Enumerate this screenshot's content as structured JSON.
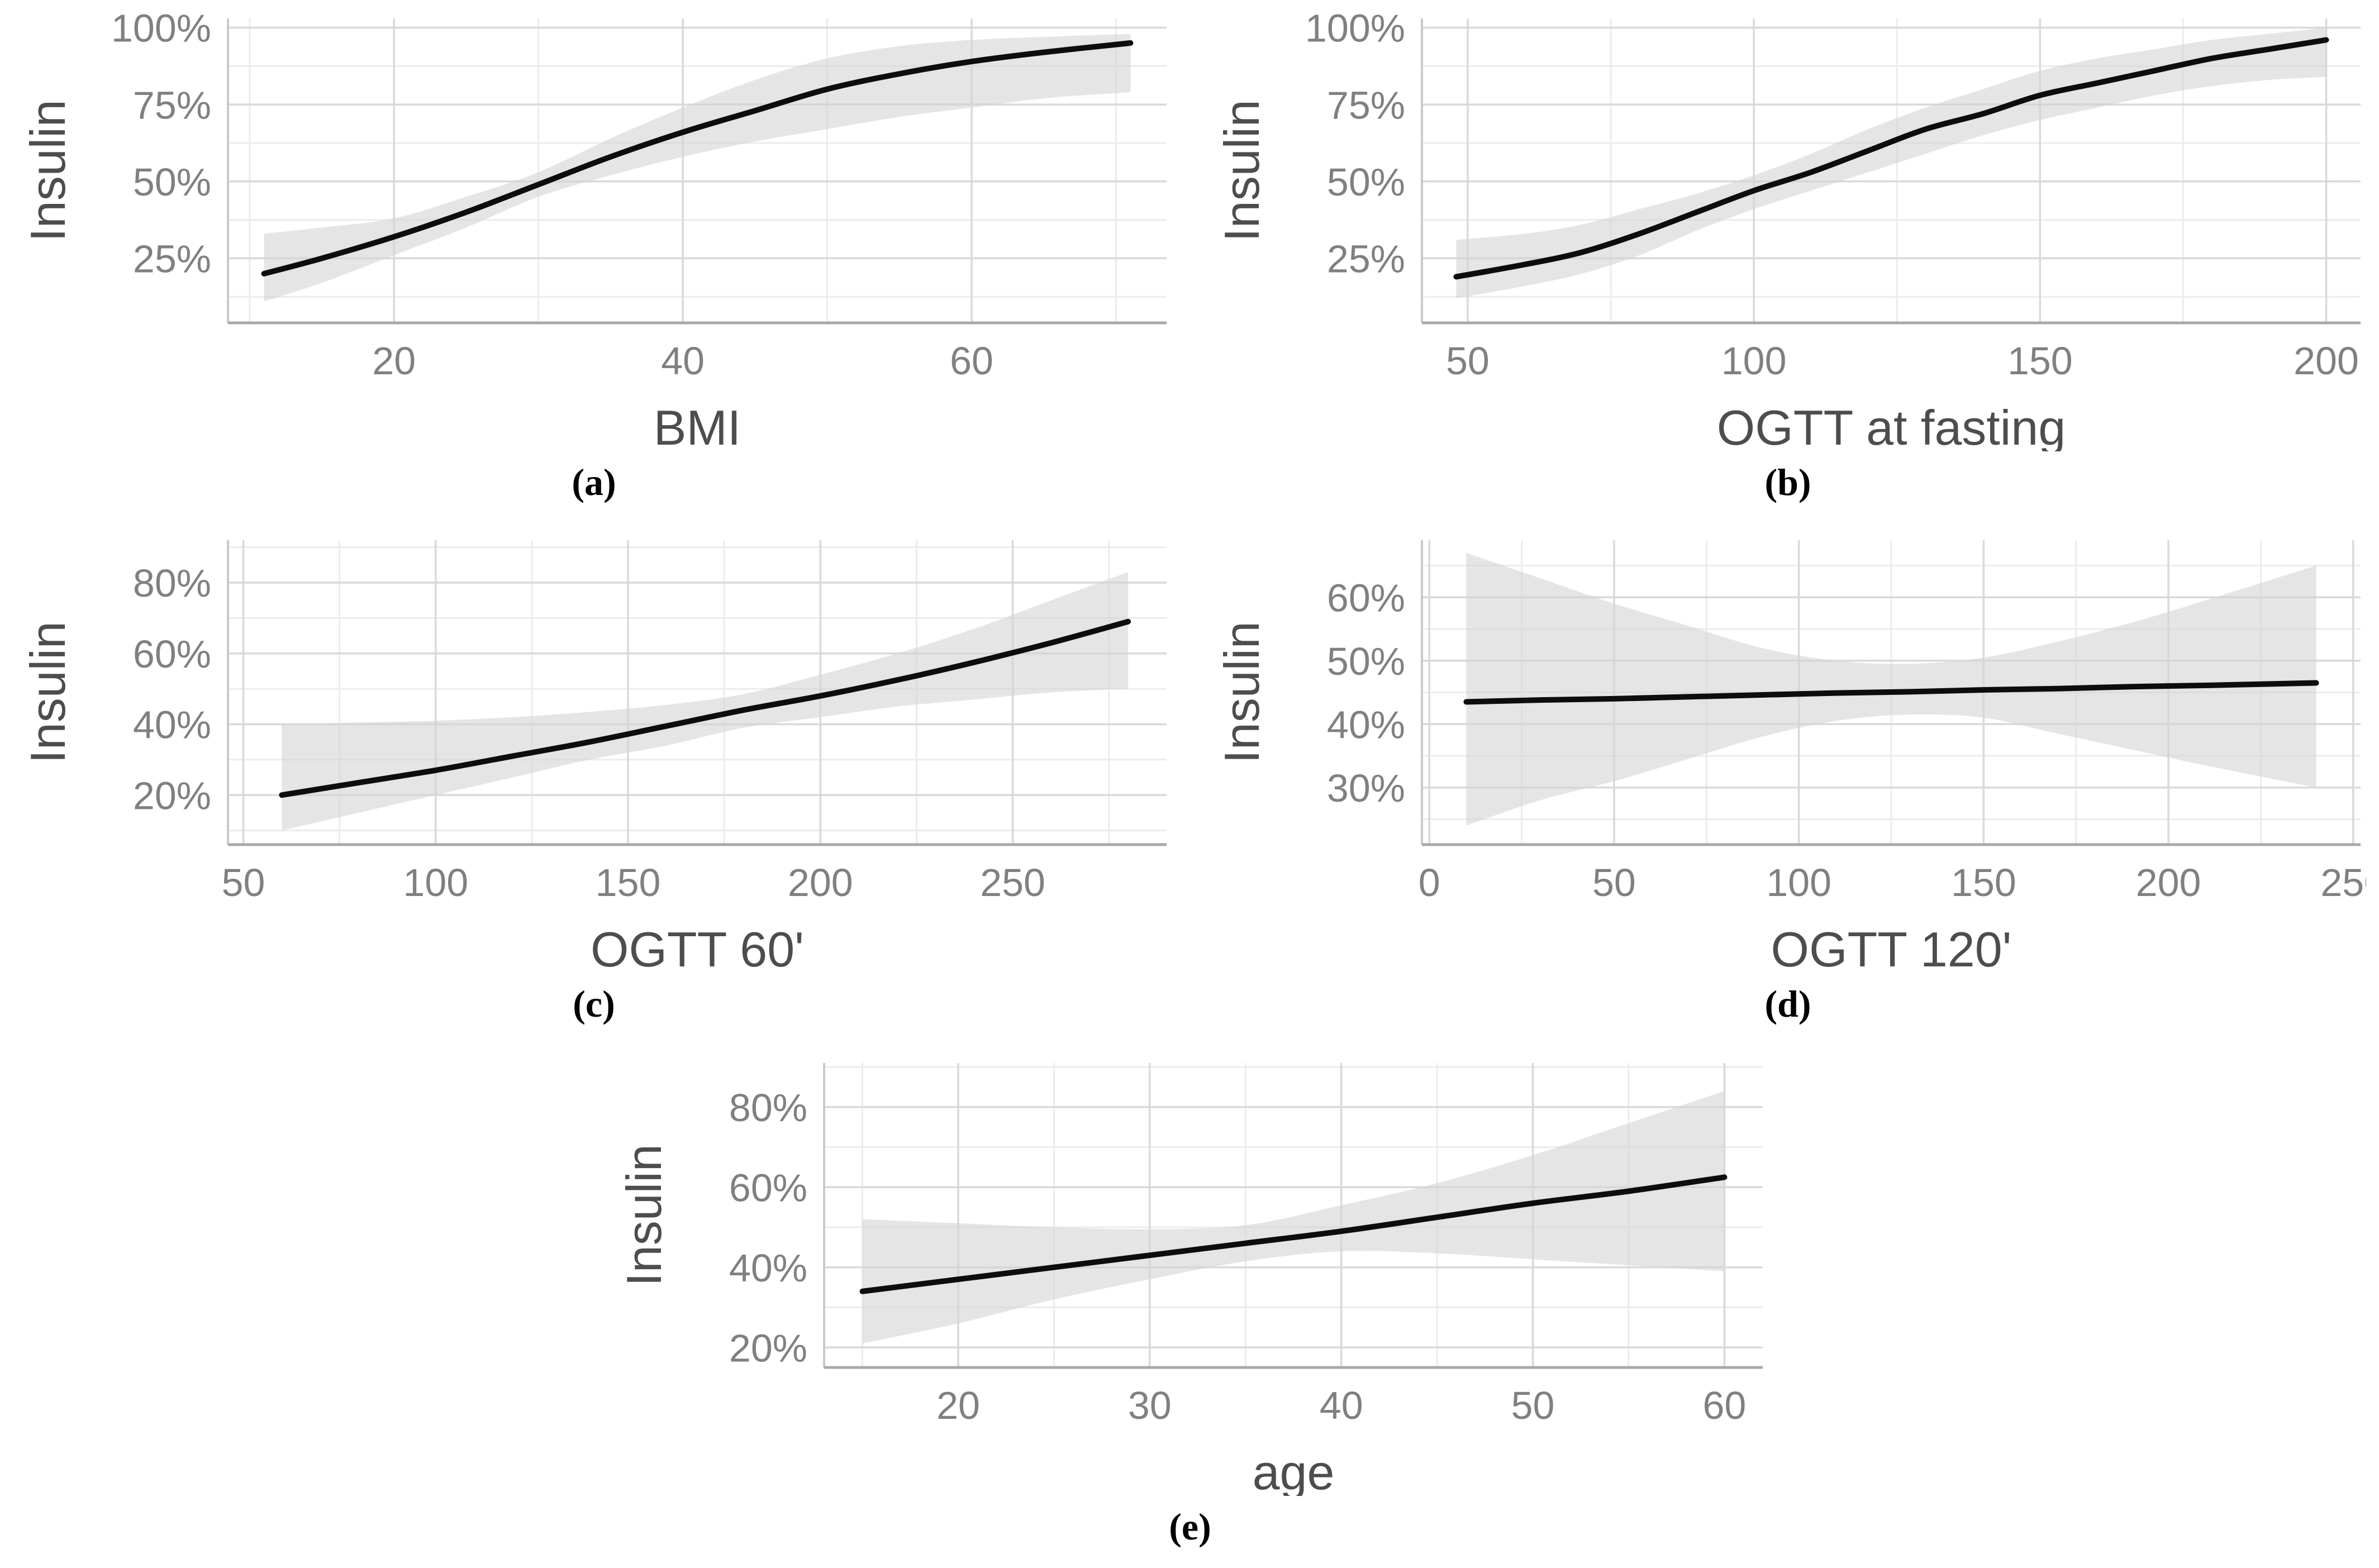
{
  "figure": {
    "background": "#ffffff",
    "tick_color": "#808080",
    "title_color": "#4d4d4d",
    "grid_major_color": "#d9d9d9",
    "grid_minor_color": "#ececec",
    "axis_left_color": "#c9c9c9",
    "axis_bottom_color": "#a9a9a9"
  },
  "chart_data": [
    {
      "id": "a",
      "type": "line",
      "caption": "(a)",
      "xlabel": "BMI",
      "ylabel": "Insulin",
      "legend": "none",
      "grid": "on",
      "line_color": "#0d0d0d",
      "band_color": "#d3d3d3",
      "band_opacity": 0.6,
      "xlim": [
        8.5,
        73.5
      ],
      "ylim": [
        4,
        103
      ],
      "xticks": [
        20,
        40,
        60
      ],
      "xtick_labels": [
        "20",
        "40",
        "60"
      ],
      "xminor": [
        10,
        30,
        50,
        70
      ],
      "yticks": [
        25,
        50,
        75,
        100
      ],
      "ytick_labels": [
        "25%",
        "50%",
        "75%",
        "100%"
      ],
      "yminor": [
        12.5,
        37.5,
        62.5,
        87.5
      ],
      "x": [
        11,
        15,
        20,
        25,
        30,
        35,
        40,
        45,
        50,
        55,
        60,
        65,
        71
      ],
      "fit": [
        20,
        25,
        32,
        40,
        49,
        58,
        66,
        73,
        80,
        85,
        89,
        92,
        95
      ],
      "ci_lower": [
        11,
        17,
        26,
        35,
        45,
        52,
        58,
        63,
        67,
        71,
        74,
        77,
        79
      ],
      "ci_upper": [
        33,
        35,
        38,
        45,
        53,
        64,
        74,
        83,
        90,
        94,
        96,
        97,
        98
      ]
    },
    {
      "id": "b",
      "type": "line",
      "caption": "(b)",
      "xlabel": "OGTT at fasting",
      "ylabel": "Insulin",
      "legend": "none",
      "grid": "on",
      "line_color": "#0d0d0d",
      "band_color": "#d3d3d3",
      "band_opacity": 0.6,
      "xlim": [
        42,
        206
      ],
      "ylim": [
        4,
        103
      ],
      "xticks": [
        50,
        100,
        150,
        200
      ],
      "xtick_labels": [
        "50",
        "100",
        "150",
        "200"
      ],
      "xminor": [
        75,
        125,
        175
      ],
      "yticks": [
        25,
        50,
        75,
        100
      ],
      "ytick_labels": [
        "25%",
        "50%",
        "75%",
        "100%"
      ],
      "yminor": [
        12.5,
        37.5,
        62.5,
        87.5
      ],
      "x": [
        48,
        60,
        70,
        80,
        90,
        100,
        110,
        120,
        130,
        140,
        150,
        160,
        170,
        180,
        190,
        200
      ],
      "fit": [
        19,
        23,
        27,
        33,
        40,
        47,
        53,
        60,
        67,
        72,
        78,
        82,
        86,
        90,
        93,
        96
      ],
      "ci_lower": [
        12,
        16,
        20,
        26,
        34,
        41,
        47,
        53,
        59,
        65,
        70,
        74,
        78,
        81,
        83,
        84
      ],
      "ci_upper": [
        31,
        33,
        36,
        41,
        46,
        52,
        59,
        67,
        74,
        80,
        86,
        90,
        93,
        96,
        98,
        100
      ]
    },
    {
      "id": "c",
      "type": "line",
      "caption": "(c)",
      "xlabel": "OGTT 60'",
      "ylabel": "Insulin",
      "legend": "none",
      "grid": "on",
      "line_color": "#0d0d0d",
      "band_color": "#d3d3d3",
      "band_opacity": 0.6,
      "xlim": [
        46,
        290
      ],
      "ylim": [
        6,
        92
      ],
      "xticks": [
        50,
        100,
        150,
        200,
        250
      ],
      "xtick_labels": [
        "50",
        "100",
        "150",
        "200",
        "250"
      ],
      "xminor": [
        75,
        125,
        175,
        225,
        275
      ],
      "yticks": [
        20,
        40,
        60,
        80
      ],
      "ytick_labels": [
        "20%",
        "40%",
        "60%",
        "80%"
      ],
      "yminor": [
        10,
        30,
        50,
        70,
        90
      ],
      "x": [
        60,
        80,
        100,
        120,
        140,
        160,
        180,
        200,
        220,
        240,
        260,
        280
      ],
      "fit": [
        20,
        23.5,
        27,
        31,
        35,
        39.5,
        44,
        48,
        52.5,
        57.5,
        63,
        69
      ],
      "ci_lower": [
        10,
        15,
        20,
        25,
        30,
        34,
        39,
        42,
        45,
        47,
        49,
        50
      ],
      "ci_upper": [
        40,
        40.5,
        41,
        42,
        43.5,
        45.5,
        48.5,
        54,
        60,
        67,
        75,
        83
      ]
    },
    {
      "id": "d",
      "type": "line",
      "caption": "(d)",
      "xlabel": "OGTT 120'",
      "ylabel": "Insulin",
      "legend": "none",
      "grid": "on",
      "line_color": "#0d0d0d",
      "band_color": "#d3d3d3",
      "band_opacity": 0.6,
      "xlim": [
        -2,
        252
      ],
      "ylim": [
        21,
        69
      ],
      "xticks": [
        0,
        50,
        100,
        150,
        200,
        250
      ],
      "xtick_labels": [
        "0",
        "50",
        "100",
        "150",
        "200",
        "250"
      ],
      "xminor": [
        25,
        75,
        125,
        175,
        225
      ],
      "yticks": [
        30,
        40,
        50,
        60
      ],
      "ytick_labels": [
        "30%",
        "40%",
        "50%",
        "60%"
      ],
      "yminor": [
        25,
        35,
        45,
        55,
        65
      ],
      "x": [
        10,
        30,
        50,
        70,
        90,
        110,
        130,
        150,
        170,
        190,
        210,
        240
      ],
      "fit": [
        43.5,
        43.8,
        44,
        44.3,
        44.6,
        44.9,
        45.1,
        45.4,
        45.6,
        45.9,
        46.1,
        46.5
      ],
      "ci_lower": [
        24,
        28,
        31,
        34.5,
        38,
        40.5,
        41.5,
        41,
        38.5,
        36,
        33.5,
        30
      ],
      "ci_upper": [
        67,
        63,
        59,
        55.5,
        52,
        50,
        49.5,
        50.5,
        53,
        56,
        59.5,
        65
      ]
    },
    {
      "id": "e",
      "type": "line",
      "caption": "(e)",
      "xlabel": "age",
      "ylabel": "Insulin",
      "legend": "none",
      "grid": "on",
      "line_color": "#0d0d0d",
      "band_color": "#d3d3d3",
      "band_opacity": 0.6,
      "xlim": [
        13,
        62
      ],
      "ylim": [
        15,
        91
      ],
      "xticks": [
        20,
        30,
        40,
        50,
        60
      ],
      "xtick_labels": [
        "20",
        "30",
        "40",
        "50",
        "60"
      ],
      "xminor": [
        15,
        25,
        35,
        45,
        55
      ],
      "yticks": [
        20,
        40,
        60,
        80
      ],
      "ytick_labels": [
        "20%",
        "40%",
        "60%",
        "80%"
      ],
      "yminor": [
        30,
        50,
        70,
        90
      ],
      "x": [
        15,
        20,
        25,
        30,
        35,
        40,
        45,
        50,
        55,
        60
      ],
      "fit": [
        34,
        37,
        40,
        43,
        46,
        49,
        52.5,
        56,
        59,
        62.5
      ],
      "ci_lower": [
        21,
        26,
        32,
        37,
        41.5,
        44,
        43.5,
        42,
        40.5,
        39
      ],
      "ci_upper": [
        52,
        51,
        50,
        49.5,
        50.5,
        55.5,
        61,
        68,
        76,
        84
      ]
    }
  ]
}
